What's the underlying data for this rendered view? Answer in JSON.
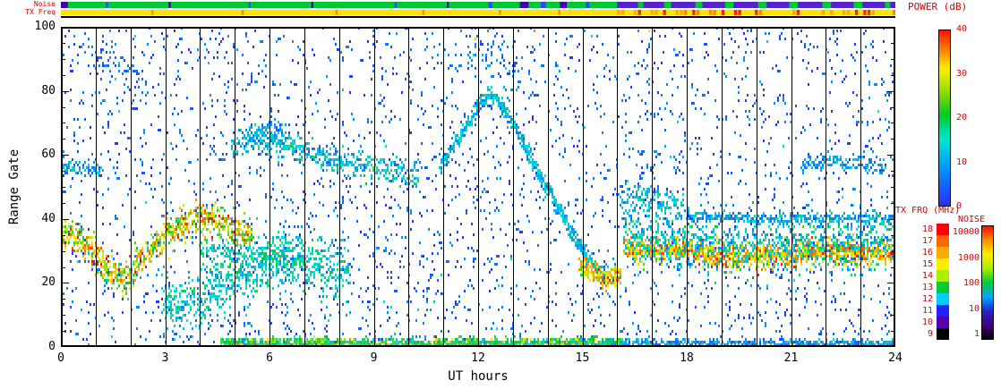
{
  "figure": {
    "bg": "#ffffff",
    "accent_red": "#dd0000"
  },
  "strips": {
    "noise_label": "Noise",
    "tx_label": "TX Freq",
    "noise": {
      "base": "#00c832",
      "segments": [
        [
          0,
          0.2,
          "#4400aa"
        ],
        [
          1.3,
          1.36,
          "#3344ff"
        ],
        [
          3.1,
          3.16,
          "#4400aa"
        ],
        [
          5.4,
          5.46,
          "#3344ff"
        ],
        [
          7.2,
          7.26,
          "#4400aa"
        ],
        [
          9.6,
          9.66,
          "#3344ff"
        ],
        [
          11.1,
          11.16,
          "#4400aa"
        ],
        [
          12.3,
          12.4,
          "#3344ff"
        ],
        [
          13.2,
          13.45,
          "#4400aa"
        ],
        [
          13.8,
          13.95,
          "#3344ff"
        ],
        [
          14.35,
          14.55,
          "#4400aa"
        ],
        [
          15.1,
          15.2,
          "#3344ff"
        ],
        [
          16.0,
          16.6,
          "#5522cc"
        ],
        [
          16.75,
          17.35,
          "#5522cc"
        ],
        [
          17.55,
          18.25,
          "#5522cc"
        ],
        [
          18.45,
          19.1,
          "#5522cc"
        ],
        [
          19.35,
          20.05,
          "#5522cc"
        ],
        [
          20.3,
          20.95,
          "#5522cc"
        ],
        [
          21.2,
          21.9,
          "#5522cc"
        ],
        [
          22.15,
          22.8,
          "#5522cc"
        ],
        [
          23.05,
          23.7,
          "#5522cc"
        ],
        [
          23.85,
          24,
          "#5522cc"
        ]
      ]
    },
    "tx": {
      "base": "#ffe400",
      "segments": [
        [
          2.6,
          2.66,
          "#ff8800"
        ],
        [
          5.2,
          5.26,
          "#ff8800"
        ],
        [
          7.9,
          7.96,
          "#ff8800"
        ],
        [
          10.4,
          10.46,
          "#ff8800"
        ],
        [
          12.6,
          12.66,
          "#ff8800"
        ],
        [
          14.3,
          14.36,
          "#ff8800"
        ]
      ],
      "mixed_region": {
        "start": 16,
        "end": 24,
        "colors": [
          "#ff8800",
          "#ff2200",
          "#ffaa00"
        ],
        "tick": 0.12,
        "duty": 0.55
      }
    }
  },
  "chart_data": {
    "type": "heatmap",
    "title": "",
    "xlabel": "UT hours",
    "ylabel": "Range Gate",
    "xlim": [
      0,
      24
    ],
    "ylim": [
      0,
      100
    ],
    "xticks": [
      0,
      3,
      6,
      9,
      12,
      15,
      18,
      21,
      24
    ],
    "x_minor_step": 1,
    "yticks": [
      0,
      20,
      40,
      60,
      80,
      100
    ],
    "y_minor_step": 5,
    "value_label": "POWER (dB)",
    "value_range": [
      0,
      40
    ],
    "gridline_hours": [
      1,
      2,
      3,
      4,
      5,
      6,
      7,
      8,
      9,
      10,
      11,
      12,
      13,
      14,
      15,
      16,
      17,
      18,
      19,
      20,
      21,
      22,
      23
    ],
    "colormap_stops": [
      [
        0,
        "#2a2aff"
      ],
      [
        0.22,
        "#0099ff"
      ],
      [
        0.38,
        "#00e6cc"
      ],
      [
        0.52,
        "#00cc22"
      ],
      [
        0.66,
        "#a0dd00"
      ],
      [
        0.78,
        "#ffee00"
      ],
      [
        0.88,
        "#ff8800"
      ],
      [
        1,
        "#ff1100"
      ]
    ],
    "background_scatter": {
      "count": 3000,
      "power_max": 9,
      "seed": 11
    },
    "features": [
      {
        "name": "dawn-band",
        "path": [
          [
            0,
            36
          ],
          [
            0.5,
            34
          ],
          [
            1.0,
            29
          ],
          [
            1.5,
            22
          ],
          [
            1.9,
            22
          ],
          [
            2.3,
            28
          ],
          [
            2.8,
            33
          ],
          [
            3.3,
            37
          ],
          [
            3.8,
            40
          ],
          [
            4.3,
            40
          ],
          [
            4.9,
            37
          ],
          [
            5.5,
            34
          ]
        ],
        "width": 5,
        "power": 29,
        "power_var": 11,
        "density": 9
      },
      {
        "name": "dawn-low-cloud",
        "path": [
          [
            2.9,
            14
          ],
          [
            3.5,
            13
          ],
          [
            4.1,
            15
          ],
          [
            4.7,
            19
          ],
          [
            5.3,
            23
          ],
          [
            5.9,
            26
          ],
          [
            6.5,
            27
          ],
          [
            7.1,
            26
          ],
          [
            7.7,
            25
          ],
          [
            8.3,
            24
          ]
        ],
        "width": 9,
        "power": 14,
        "power_var": 6,
        "density": 7
      },
      {
        "name": "dawn-mid-cloud",
        "path": [
          [
            4.0,
            30
          ],
          [
            4.6,
            29
          ],
          [
            5.2,
            28
          ],
          [
            5.8,
            28
          ],
          [
            6.4,
            27
          ],
          [
            7.0,
            27
          ]
        ],
        "width": 6,
        "power": 16,
        "power_var": 7,
        "density": 5
      },
      {
        "name": "low-gate-band",
        "path": [
          [
            4.6,
            1
          ],
          [
            7,
            1
          ],
          [
            9.5,
            1
          ],
          [
            12,
            1
          ],
          [
            14,
            1
          ],
          [
            16.2,
            1
          ]
        ],
        "width": 1.6,
        "power": 20,
        "power_var": 12,
        "density": 8
      },
      {
        "name": "low-gate-band-evening",
        "path": [
          [
            16.2,
            1
          ],
          [
            20,
            1
          ],
          [
            24,
            1
          ]
        ],
        "width": 1.4,
        "power": 9,
        "power_var": 7,
        "density": 4
      },
      {
        "name": "noon-band",
        "path": [
          [
            4.9,
            63
          ],
          [
            5.5,
            65
          ],
          [
            6.1,
            64
          ],
          [
            6.7,
            62
          ],
          [
            7.3,
            60
          ],
          [
            7.9,
            58
          ],
          [
            8.5,
            57
          ],
          [
            9.1,
            56
          ],
          [
            9.7,
            55
          ],
          [
            10.3,
            54
          ]
        ],
        "width": 4,
        "power": 12,
        "power_var": 7,
        "density": 5
      },
      {
        "name": "noon-high-cloud",
        "path": [
          [
            5.3,
            67
          ],
          [
            5.9,
            68
          ],
          [
            6.5,
            67
          ]
        ],
        "width": 3,
        "power": 10,
        "power_var": 5,
        "density": 3
      },
      {
        "name": "noon-arc",
        "path": [
          [
            10.9,
            57
          ],
          [
            11.3,
            63
          ],
          [
            11.7,
            70
          ],
          [
            12.0,
            76
          ],
          [
            12.3,
            79
          ],
          [
            12.6,
            76
          ],
          [
            13.0,
            69
          ],
          [
            13.4,
            61
          ],
          [
            13.8,
            53
          ],
          [
            14.2,
            45
          ],
          [
            14.6,
            37
          ],
          [
            15.0,
            30
          ],
          [
            15.4,
            24
          ],
          [
            15.8,
            21
          ]
        ],
        "width": 2.5,
        "power": 12,
        "power_var": 6,
        "density": 7
      },
      {
        "name": "pre-evening-blob",
        "path": [
          [
            14.9,
            26
          ],
          [
            15.3,
            23
          ],
          [
            15.7,
            21
          ],
          [
            16.1,
            23
          ]
        ],
        "width": 3,
        "power": 31,
        "power_var": 8,
        "density": 8
      },
      {
        "name": "evening-band-core",
        "path": [
          [
            16.2,
            31
          ],
          [
            17,
            31
          ],
          [
            18,
            30
          ],
          [
            19,
            28
          ],
          [
            20,
            28
          ],
          [
            21,
            29
          ],
          [
            22,
            30
          ],
          [
            23,
            29
          ],
          [
            24,
            30
          ]
        ],
        "width": 3.5,
        "power": 33,
        "power_var": 7,
        "density": 10
      },
      {
        "name": "evening-band-halo",
        "path": [
          [
            16.2,
            34
          ],
          [
            17,
            34
          ],
          [
            18,
            33
          ],
          [
            19,
            31
          ],
          [
            20,
            31
          ],
          [
            21,
            32
          ],
          [
            22,
            33
          ],
          [
            23,
            32
          ],
          [
            24,
            33
          ]
        ],
        "width": 9,
        "power": 14,
        "power_var": 8,
        "density": 7
      },
      {
        "name": "evening-upper-cloud",
        "path": [
          [
            16.1,
            45
          ],
          [
            16.7,
            47
          ],
          [
            17.3,
            45
          ],
          [
            17.9,
            43
          ]
        ],
        "width": 5,
        "power": 12,
        "power_var": 6,
        "density": 4
      },
      {
        "name": "evening-40-line",
        "path": [
          [
            18,
            41
          ],
          [
            20,
            40
          ],
          [
            22,
            40
          ],
          [
            24,
            40
          ]
        ],
        "width": 1.5,
        "power": 10,
        "power_var": 6,
        "density": 3
      },
      {
        "name": "late-57-line",
        "path": [
          [
            21.3,
            57
          ],
          [
            22.1,
            58
          ],
          [
            22.9,
            57
          ],
          [
            23.7,
            56
          ]
        ],
        "width": 2.5,
        "power": 9,
        "power_var": 6,
        "density": 3
      },
      {
        "name": "early-56-line",
        "path": [
          [
            0,
            56
          ],
          [
            0.6,
            56
          ],
          [
            1.2,
            55
          ]
        ],
        "width": 2,
        "power": 10,
        "power_var": 6,
        "density": 3
      },
      {
        "name": "morning-top-scatter",
        "path": [
          [
            0.9,
            90
          ],
          [
            1.4,
            88
          ],
          [
            1.9,
            86
          ],
          [
            2.4,
            84
          ]
        ],
        "width": 9,
        "power": 6,
        "power_var": 5,
        "density": 2
      },
      {
        "name": "noon-top-scatter",
        "path": [
          [
            11.7,
            90
          ],
          [
            12.1,
            93
          ],
          [
            12.5,
            91
          ],
          [
            12.9,
            88
          ],
          [
            13.3,
            86
          ]
        ],
        "width": 8,
        "power": 7,
        "power_var": 6,
        "density": 2
      }
    ],
    "hot_cells": [
      [
        12.3,
        99,
        38
      ],
      [
        13.6,
        99,
        36
      ],
      [
        16.9,
        99,
        30
      ],
      [
        11.9,
        96,
        28
      ]
    ]
  },
  "legend": {
    "power_label": "POWER (dB)",
    "power_ticks": [
      40,
      30,
      20,
      10,
      0
    ],
    "tx_label": "TX FRQ (MHz)",
    "tx_bins": [
      {
        "value": 18,
        "color": "#ff0000"
      },
      {
        "value": 17,
        "color": "#ff6600"
      },
      {
        "value": 16,
        "color": "#ffaa00"
      },
      {
        "value": 15,
        "color": "#ffee00"
      },
      {
        "value": 14,
        "color": "#aaee00"
      },
      {
        "value": 13,
        "color": "#00cc33"
      },
      {
        "value": 12,
        "color": "#00ccff"
      },
      {
        "value": 11,
        "color": "#2222ff"
      },
      {
        "value": 10,
        "color": "#5500aa"
      },
      {
        "value": 9,
        "color": "#000000"
      }
    ],
    "noise_label": "NOISE",
    "noise_ticks": [
      "10000",
      "1000",
      "100",
      "10",
      "1"
    ],
    "noise_stops": [
      "#000000",
      "#440077",
      "#2222cc",
      "#00aaff",
      "#00cc33",
      "#aaee00",
      "#ffee00",
      "#ff8800",
      "#ff0000"
    ]
  }
}
